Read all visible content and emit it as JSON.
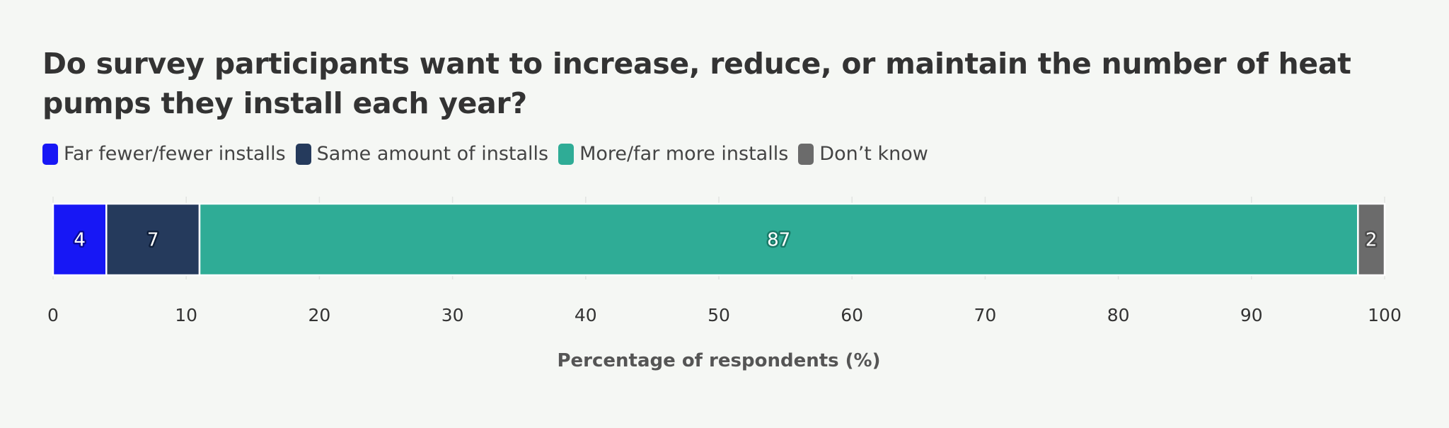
{
  "chart_data": {
    "type": "bar",
    "orientation": "horizontal",
    "stacked": true,
    "title": "Do survey participants want to increase, reduce, or maintain the number of heat pumps they install each year?",
    "xlabel": "Percentage of respondents (%)",
    "ylabel": "",
    "xlim": [
      0,
      100
    ],
    "xticks": [
      0,
      10,
      20,
      30,
      40,
      50,
      60,
      70,
      80,
      90,
      100
    ],
    "grid": true,
    "legend_position": "top-left",
    "categories": [
      ""
    ],
    "series": [
      {
        "name": "Far fewer/fewer installs",
        "values": [
          4
        ],
        "label": "4",
        "color": "#1717f5",
        "label_stroke": "#0b0b9a"
      },
      {
        "name": "Same amount of installs",
        "values": [
          7
        ],
        "label": "7",
        "color": "#253a5c",
        "label_stroke": "#0f1f3a"
      },
      {
        "name": "More/far more installs",
        "values": [
          87
        ],
        "label": "87",
        "color": "#2fac96",
        "label_stroke": "#1a7a68"
      },
      {
        "name": "Don’t know",
        "values": [
          2
        ],
        "label": "2",
        "color": "#6b6b6b",
        "label_stroke": "#4a4a4a"
      }
    ]
  }
}
